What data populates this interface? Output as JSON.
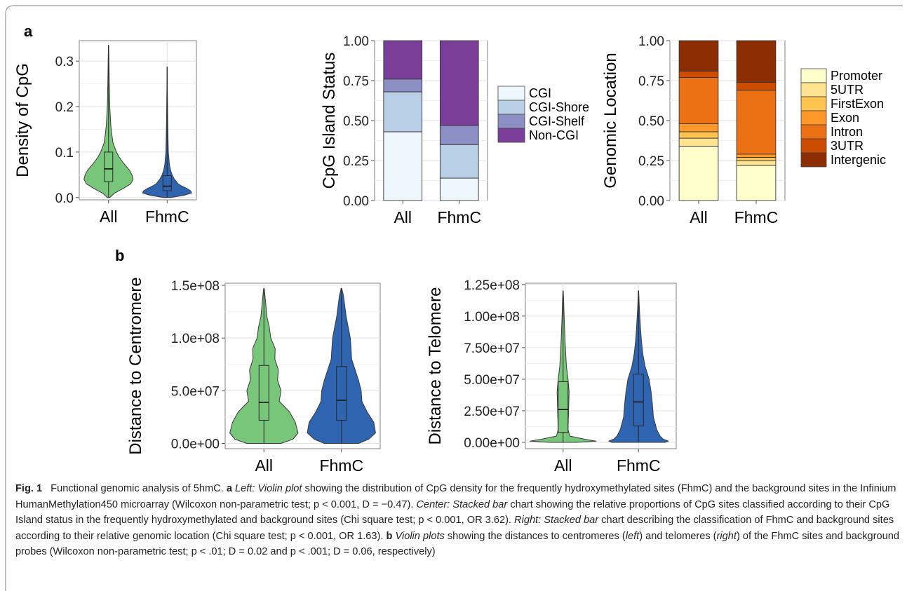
{
  "figure": {
    "panel_a_label": "a",
    "panel_b_label": "b",
    "colors": {
      "all": "#78c679",
      "fhmc": "#2e64b0",
      "cgi": [
        "#eef7fb",
        "#b8cfe6",
        "#8c8fc4",
        "#7b3f9a"
      ],
      "genomic": [
        "#ffffcc",
        "#fee391",
        "#fec44f",
        "#fe9929",
        "#ec7014",
        "#cc4c02",
        "#8c2d04"
      ]
    }
  },
  "chart_data": [
    {
      "id": "cpg_density",
      "type": "violin",
      "categories": [
        "All",
        "FhmC"
      ],
      "ylabel": "Density of CpG",
      "ylim": [
        -0.005,
        0.345
      ],
      "yticks": [
        0.0,
        0.1,
        0.2,
        0.3
      ],
      "ytick_labels": [
        "0.0",
        "0.1",
        "0.2",
        "0.3"
      ],
      "series": [
        {
          "category": "All",
          "min": 0.0,
          "q1": 0.035,
          "median": 0.063,
          "q3": 0.1,
          "max": 0.335,
          "density_y": [
            0.0,
            0.01,
            0.02,
            0.03,
            0.04,
            0.05,
            0.06,
            0.07,
            0.08,
            0.09,
            0.1,
            0.11,
            0.12,
            0.14,
            0.16,
            0.18,
            0.2,
            0.22,
            0.25,
            0.28,
            0.31,
            0.335
          ],
          "density_w": [
            0.05,
            0.25,
            0.6,
            0.9,
            1.0,
            0.95,
            0.85,
            0.7,
            0.55,
            0.42,
            0.32,
            0.25,
            0.18,
            0.13,
            0.09,
            0.07,
            0.05,
            0.04,
            0.03,
            0.02,
            0.012,
            0.005
          ]
        },
        {
          "category": "FhmC",
          "min": 0.0,
          "q1": 0.015,
          "median": 0.025,
          "q3": 0.048,
          "max": 0.287,
          "density_y": [
            0.0,
            0.005,
            0.01,
            0.015,
            0.02,
            0.025,
            0.03,
            0.04,
            0.05,
            0.06,
            0.07,
            0.08,
            0.1,
            0.12,
            0.15,
            0.18,
            0.21,
            0.25,
            0.287
          ],
          "density_w": [
            0.15,
            0.7,
            1.0,
            0.95,
            0.8,
            0.6,
            0.45,
            0.3,
            0.2,
            0.14,
            0.1,
            0.08,
            0.05,
            0.04,
            0.03,
            0.02,
            0.015,
            0.008,
            0.003
          ]
        }
      ]
    },
    {
      "id": "cpg_island_status",
      "type": "stacked_bar",
      "categories": [
        "All",
        "FhmC"
      ],
      "ylabel": "CpG Island Status",
      "ylim": [
        0,
        1
      ],
      "yticks": [
        0.0,
        0.25,
        0.5,
        0.75,
        1.0
      ],
      "ytick_labels": [
        "0.00",
        "0.25",
        "0.50",
        "0.75",
        "1.00"
      ],
      "legend": [
        "CGI",
        "CGI-Shore",
        "CGI-Shelf",
        "Non-CGI"
      ],
      "series": [
        {
          "name": "CGI",
          "values": [
            0.43,
            0.14
          ]
        },
        {
          "name": "CGI-Shore",
          "values": [
            0.25,
            0.21
          ]
        },
        {
          "name": "CGI-Shelf",
          "values": [
            0.08,
            0.12
          ]
        },
        {
          "name": "Non-CGI",
          "values": [
            0.24,
            0.53
          ]
        }
      ]
    },
    {
      "id": "genomic_location",
      "type": "stacked_bar",
      "categories": [
        "All",
        "FhmC"
      ],
      "ylabel": "Genomic Location",
      "ylim": [
        0,
        1
      ],
      "yticks": [
        0.0,
        0.25,
        0.5,
        0.75,
        1.0
      ],
      "ytick_labels": [
        "0.00",
        "0.25",
        "0.50",
        "0.75",
        "1.00"
      ],
      "legend": [
        "Promoter",
        "5UTR",
        "FirstExon",
        "Exon",
        "Intron",
        "3UTR",
        "Intergenic"
      ],
      "series": [
        {
          "name": "Promoter",
          "values": [
            0.34,
            0.22
          ]
        },
        {
          "name": "5UTR",
          "values": [
            0.05,
            0.03
          ]
        },
        {
          "name": "FirstExon",
          "values": [
            0.04,
            0.02
          ]
        },
        {
          "name": "Exon",
          "values": [
            0.05,
            0.02
          ]
        },
        {
          "name": "Intron",
          "values": [
            0.29,
            0.4
          ]
        },
        {
          "name": "3UTR",
          "values": [
            0.04,
            0.05
          ]
        },
        {
          "name": "Intergenic",
          "values": [
            0.19,
            0.26
          ]
        }
      ]
    },
    {
      "id": "distance_centromere",
      "type": "violin",
      "categories": [
        "All",
        "FhmC"
      ],
      "ylabel": "Distance to Centromere",
      "ylim": [
        -5000000,
        152000000
      ],
      "yticks": [
        0,
        50000000,
        100000000,
        150000000
      ],
      "ytick_labels": [
        "0.0e+00",
        "5.0e+07",
        "1.0e+08",
        "1.5e+08"
      ],
      "series": [
        {
          "category": "All",
          "min": 0,
          "q1": 22000000,
          "median": 39000000,
          "q3": 74000000,
          "max": 147000000,
          "density_y": [
            0,
            4000000,
            10000000,
            20000000,
            30000000,
            40000000,
            50000000,
            60000000,
            70000000,
            80000000,
            90000000,
            100000000,
            110000000,
            120000000,
            130000000,
            140000000,
            147000000
          ],
          "density_w": [
            0.5,
            0.85,
            1.0,
            0.92,
            0.75,
            0.45,
            0.5,
            0.4,
            0.42,
            0.32,
            0.33,
            0.2,
            0.16,
            0.09,
            0.06,
            0.03,
            0.01
          ]
        },
        {
          "category": "FhmC",
          "min": 0,
          "q1": 22000000,
          "median": 41000000,
          "q3": 73000000,
          "max": 147000000,
          "density_y": [
            0,
            4000000,
            10000000,
            20000000,
            30000000,
            40000000,
            50000000,
            60000000,
            70000000,
            80000000,
            90000000,
            100000000,
            110000000,
            120000000,
            130000000,
            140000000,
            147000000
          ],
          "density_w": [
            0.5,
            0.8,
            1.0,
            0.95,
            0.75,
            0.6,
            0.58,
            0.5,
            0.4,
            0.3,
            0.28,
            0.26,
            0.2,
            0.14,
            0.1,
            0.06,
            0.01
          ]
        }
      ]
    },
    {
      "id": "distance_telomere",
      "type": "violin",
      "categories": [
        "All",
        "FhmC"
      ],
      "ylabel": "Distance to Telomere",
      "ylim": [
        -5000000,
        126000000
      ],
      "yticks": [
        0,
        25000000,
        50000000,
        75000000,
        100000000,
        125000000
      ],
      "ytick_labels": [
        "0.00e+00",
        "2.50e+07",
        "5.00e+07",
        "7.50e+07",
        "1.00e+08",
        "1.25e+08"
      ],
      "series": [
        {
          "category": "All",
          "min": 0,
          "q1": 8000000,
          "median": 26000000,
          "q3": 48000000,
          "max": 120000000,
          "density_y": [
            0,
            1000000,
            2500000,
            5000000,
            10000000,
            20000000,
            30000000,
            40000000,
            50000000,
            60000000,
            70000000,
            80000000,
            90000000,
            100000000,
            110000000,
            120000000
          ],
          "density_w": [
            0.4,
            1.0,
            0.65,
            0.2,
            0.15,
            0.16,
            0.17,
            0.18,
            0.15,
            0.1,
            0.08,
            0.06,
            0.045,
            0.03,
            0.02,
            0.005
          ]
        },
        {
          "category": "FhmC",
          "min": 0,
          "q1": 13000000,
          "median": 32000000,
          "q3": 54000000,
          "max": 120000000,
          "density_y": [
            0,
            1000000,
            2500000,
            5000000,
            10000000,
            20000000,
            30000000,
            40000000,
            50000000,
            60000000,
            70000000,
            80000000,
            90000000,
            100000000,
            110000000,
            120000000
          ],
          "density_w": [
            0.8,
            0.9,
            0.75,
            0.65,
            0.55,
            0.45,
            0.42,
            0.38,
            0.32,
            0.2,
            0.13,
            0.09,
            0.06,
            0.04,
            0.02,
            0.005
          ]
        }
      ]
    }
  ],
  "caption": {
    "fig_label": "Fig. 1",
    "title": "Functional genomic analysis of 5hmC.",
    "a_label": "a",
    "a_left_italic": "Left: Violin plot",
    "a_left_text": "showing the distribution of CpG density for the frequently hydroxymethylated sites (FhmC) and the background sites in the Infinium HumanMethylation450 microarray (Wilcoxon non-parametric test; p < 0.001, D = −0.47).",
    "a_center_italic": "Center: Stacked bar",
    "a_center_text": "chart showing the relative proportions of CpG sites classified according to their CpG Island status in the frequently hydroxymethylated and background sites (Chi square test; p < 0.001, OR 3.62).",
    "a_right_italic": "Right: Stacked bar",
    "a_right_text": "chart describing the classification of FhmC and background sites according to their relative genomic location (Chi square test; p < 0.001, OR 1.63).",
    "b_label": "b",
    "b_italic": "Violin plots",
    "b_text_1": "showing the distances to centromeres (",
    "b_left_italic": "left",
    "b_text_2": ") and telomeres (",
    "b_right_italic": "right",
    "b_text_3": ") of the FhmC sites and background probes (Wilcoxon non-parametric test; p < .01; D = 0.02 and p < .001; D = 0.06, respectively)"
  }
}
